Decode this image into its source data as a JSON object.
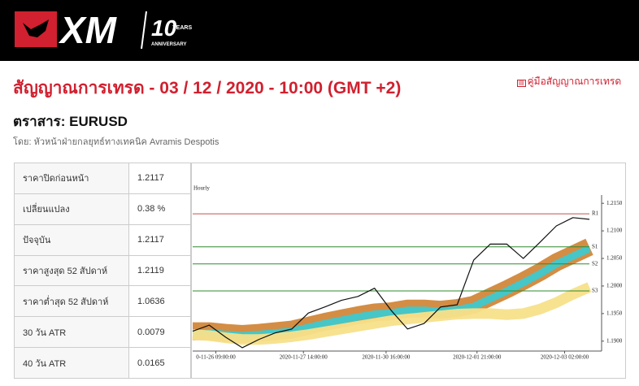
{
  "header": {
    "brand": "XM",
    "years": "10",
    "years_word": "YEARS",
    "anniversary": "ANNIVERSARY"
  },
  "title": "สัญญาณการเทรด - 03 / 12 / 2020 - 10:00 (GMT +2)",
  "guide_link": "คู่มือสัญญาณการเทรด",
  "instrument": "ตราสาร: EURUSD",
  "author": "โดย: หัวหน้าฝ่ายกลยุทธ์ทางเทคนิค Avramis Despotis",
  "table": {
    "rows": [
      [
        "ราคาปิดก่อนหน้า",
        "1.2117"
      ],
      [
        "เปลี่ยนแปลง",
        "0.38 %"
      ],
      [
        "ปัจจุบัน",
        "1.2117"
      ],
      [
        "ราคาสูงสุด 52 สัปดาห์",
        "1.2119"
      ],
      [
        "ราคาต่ำสุด 52 สัปดาห์",
        "1.0636"
      ],
      [
        "30 วัน ATR",
        "0.0079"
      ],
      [
        "40 วัน ATR",
        "0.0165"
      ]
    ]
  },
  "chart": {
    "type": "line",
    "title": "Hourly",
    "x": [
      0,
      1,
      2,
      3,
      4,
      5,
      6,
      7,
      8,
      9,
      10,
      11,
      12,
      13,
      14,
      15,
      16,
      17,
      18,
      19,
      20,
      21,
      22,
      23,
      24
    ],
    "xlim": [
      0,
      24
    ],
    "xticks": [
      {
        "value": 1.4,
        "label": "0-11-26 09:00:00"
      },
      {
        "value": 6.7,
        "label": "2020-11-27 14:00:00"
      },
      {
        "value": 11.7,
        "label": "2020-11-30 16:00:00"
      },
      {
        "value": 17.2,
        "label": "2020-12-01 21:00:00"
      },
      {
        "value": 22.5,
        "label": "2020-12-03 02:00:00"
      }
    ],
    "ylim": [
      1.1882,
      1.2165
    ],
    "yticks": [
      {
        "value": 1.215,
        "label": "1.2150"
      },
      {
        "value": 1.21,
        "label": "1.2100"
      },
      {
        "value": 1.205,
        "label": "1.2050"
      },
      {
        "value": 1.2,
        "label": "1.2000"
      },
      {
        "value": 1.195,
        "label": "1.1950"
      },
      {
        "value": 1.19,
        "label": "1.1900"
      }
    ],
    "bands": [
      {
        "color": "#d2873a",
        "width": 22,
        "values": [
          1.1918,
          1.1918,
          1.1915,
          1.1913,
          1.1915,
          1.1918,
          1.1921,
          1.1928,
          1.1935,
          1.1941,
          1.1947,
          1.1952,
          1.1954,
          1.1959,
          1.1959,
          1.1957,
          1.196,
          1.1966,
          1.198,
          1.1994,
          1.2009,
          1.2025,
          1.2043,
          1.2057,
          1.2071
        ]
      },
      {
        "color": "#3ec9cf",
        "width": 9,
        "values": [
          1.1915,
          1.1915,
          1.1912,
          1.191,
          1.1912,
          1.1915,
          1.1918,
          1.1925,
          1.1932,
          1.1938,
          1.1944,
          1.1949,
          1.1951,
          1.1956,
          1.1956,
          1.1954,
          1.1957,
          1.1963,
          1.1977,
          1.1991,
          1.2006,
          1.2022,
          1.204,
          1.2054,
          1.2068
        ]
      },
      {
        "color": "#f7e08a",
        "width": 13,
        "values": [
          1.1912,
          1.191,
          1.1906,
          1.1903,
          1.1903,
          1.1905,
          1.1908,
          1.1912,
          1.1917,
          1.1922,
          1.1927,
          1.1932,
          1.1937,
          1.194,
          1.1943,
          1.1946,
          1.1949,
          1.195,
          1.195,
          1.1948,
          1.195,
          1.1958,
          1.197,
          1.1985,
          1.1998
        ]
      }
    ],
    "series": [
      {
        "color": "#111111",
        "values": [
          1.1918,
          1.1929,
          1.1907,
          1.1888,
          1.1903,
          1.1915,
          1.1922,
          1.1951,
          1.1962,
          1.1974,
          1.1981,
          1.1996,
          1.1956,
          1.1922,
          1.1932,
          1.1962,
          1.1966,
          1.2047,
          1.2076,
          1.2076,
          1.205,
          1.2079,
          1.2109,
          1.2124,
          1.2121
        ]
      }
    ],
    "levels": [
      {
        "name": "R1",
        "value": 1.2131,
        "color": "#c0504d"
      },
      {
        "name": "S1",
        "value": 1.2071,
        "color": "#2e8b2e"
      },
      {
        "name": "S2",
        "value": 1.204,
        "color": "#2e8b2e"
      },
      {
        "name": "S3",
        "value": 1.1991,
        "color": "#2e8b2e"
      }
    ]
  }
}
